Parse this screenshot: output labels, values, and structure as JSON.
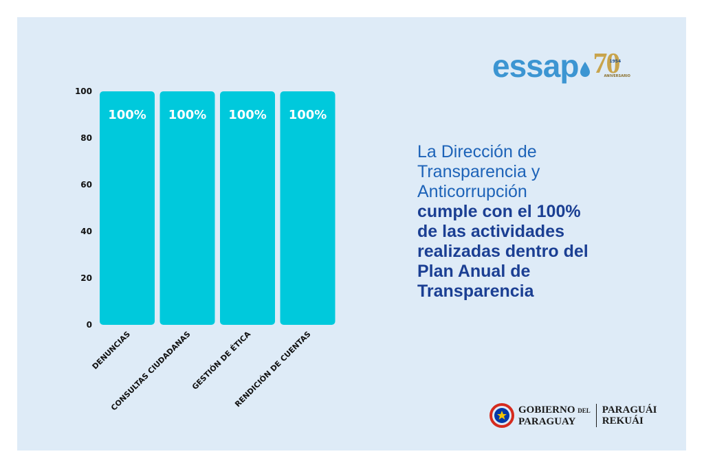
{
  "colors": {
    "card": "#deebf7",
    "bar": "#00c9dc",
    "headline_light": "#1d63b8",
    "headline_bold": "#1b3f93",
    "logo_blue": "#3c95d2",
    "logo_gold": "#c8a44c"
  },
  "chart_data": {
    "type": "bar",
    "categories": [
      "DENUNCIAS",
      "CONSULTAS CIUDADANAS",
      "GESTIÓN DE ÉTICA",
      "RENDICIÓN DE CUENTAS"
    ],
    "values": [
      100,
      100,
      100,
      100
    ],
    "data_labels": [
      "100%",
      "100%",
      "100%",
      "100%"
    ],
    "yticks": [
      "0",
      "20",
      "40",
      "60",
      "80",
      "100"
    ],
    "ylim": [
      0,
      100
    ],
    "grid": false,
    "legend": "none"
  },
  "headline": {
    "light_lines": [
      "La Dirección de",
      "Transparencia y",
      "Anticorrupción"
    ],
    "bold_lines": [
      "cumple con el 100%",
      "de las actividades",
      "realizadas dentro del",
      "Plan Anual de",
      "Transparencia"
    ]
  },
  "logo": {
    "word": "essap",
    "anniversary_number": "70",
    "year": "1954",
    "anniversary_text": "ANIVERSARIO"
  },
  "footer": {
    "gov_line1": "GOBIERNO",
    "gov_del": "DEL",
    "gov_line2": "PARAGUAY",
    "motto_line1": "PARAGUÁI",
    "motto_line2": "REKUÁI"
  }
}
